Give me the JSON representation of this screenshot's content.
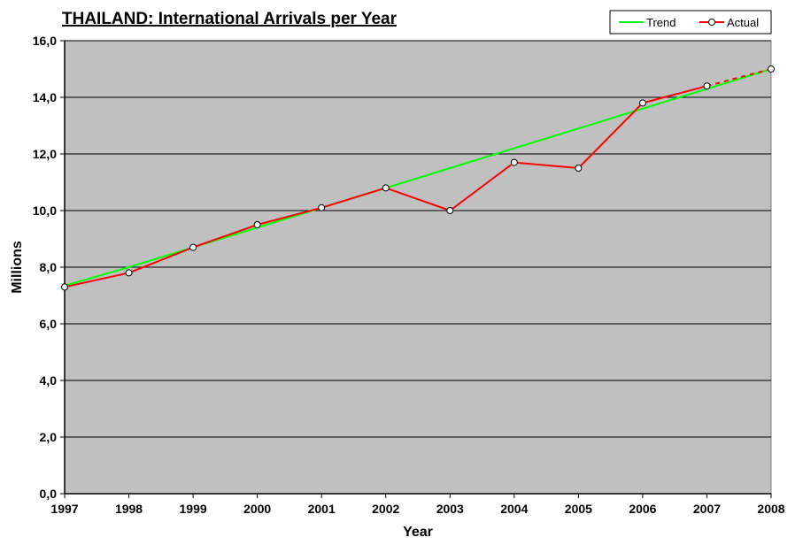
{
  "chart_data": {
    "type": "line",
    "title": "THAILAND: International Arrivals per Year",
    "xlabel": "Year",
    "ylabel": "Millions",
    "x": [
      "1997",
      "1998",
      "1999",
      "2000",
      "2001",
      "2002",
      "2003",
      "2004",
      "2005",
      "2006",
      "2007",
      "2008"
    ],
    "ylim": [
      0,
      16
    ],
    "y_ticks": [
      "0,0",
      "2,0",
      "4,0",
      "6,0",
      "8,0",
      "10,0",
      "12,0",
      "14,0",
      "16,0"
    ],
    "grid": "horizontal",
    "legend_position": "top-right",
    "plot_background": "#c0c0c0",
    "series": [
      {
        "name": "Trend",
        "color": "#00ff00",
        "marker": "none",
        "values": [
          7.35,
          8.0,
          8.7,
          9.4,
          10.1,
          10.8,
          11.5,
          12.2,
          12.9,
          13.6,
          14.3,
          15.0
        ]
      },
      {
        "name": "Actual",
        "color": "#ff0000",
        "marker": "circle",
        "values": [
          7.3,
          7.8,
          8.7,
          9.5,
          10.1,
          10.8,
          10.0,
          11.7,
          11.5,
          13.8,
          14.4,
          15.0
        ],
        "dashed_last_segment": true
      }
    ]
  }
}
